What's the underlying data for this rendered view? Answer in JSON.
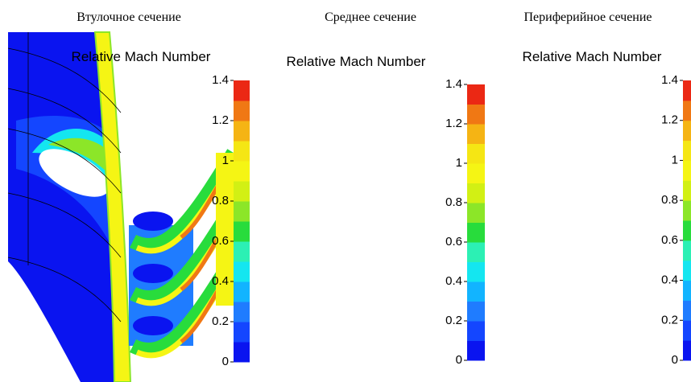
{
  "colormap": [
    "#0a14f0",
    "#1446ff",
    "#1f7cff",
    "#12b4ff",
    "#14e6f0",
    "#2cf0b4",
    "#28dc3c",
    "#8ce628",
    "#d2f014",
    "#f5f514",
    "#f5e614",
    "#f5b414",
    "#f07814",
    "#eb2814"
  ],
  "cbar_lim": [
    0,
    1.4
  ],
  "panels": [
    {
      "title": "Втулочное сечение",
      "legend_title": "Relative Mach Number",
      "ticks": [
        0,
        0.2,
        0.4,
        0.6,
        0.8,
        1,
        1.2,
        1.4
      ]
    },
    {
      "title": "Среднее сечение",
      "legend_title": "Relative Mach Number",
      "ticks": [
        0,
        0.2,
        0.4,
        0.6,
        0.8,
        1,
        1.2,
        1.4
      ]
    },
    {
      "title": "Периферийное сечение",
      "legend_title": "Relative Mach Number",
      "ticks": [
        0,
        0.2,
        0.4,
        0.6,
        0.8,
        1,
        1.2,
        1.4
      ]
    }
  ]
}
